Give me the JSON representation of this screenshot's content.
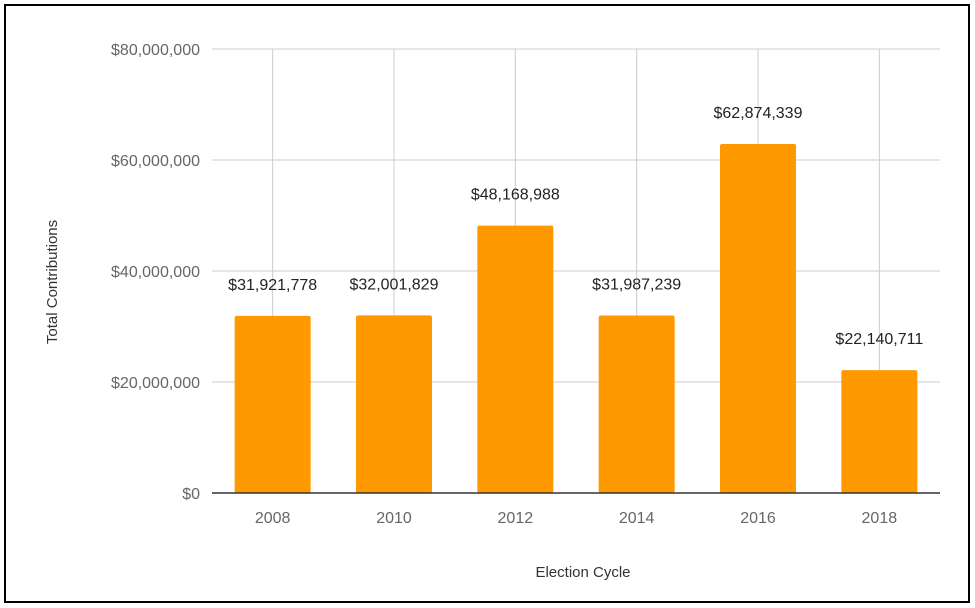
{
  "chart_data": {
    "type": "bar",
    "title": "",
    "xlabel": "Election Cycle",
    "ylabel": "Total Contributions",
    "categories": [
      "2008",
      "2010",
      "2012",
      "2014",
      "2016",
      "2018"
    ],
    "values": [
      31921778,
      32001829,
      48168988,
      31987239,
      62874339,
      22140711
    ],
    "value_labels": [
      "$31,921,778",
      "$32,001,829",
      "$48,168,988",
      "$31,987,239",
      "$62,874,339",
      "$22,140,711"
    ],
    "y_ticks": [
      0,
      20000000,
      40000000,
      60000000,
      80000000
    ],
    "y_tick_labels": [
      "$0",
      "$20,000,000",
      "$40,000,000",
      "$60,000,000",
      "$80,000,000"
    ],
    "ylim": [
      0,
      80000000
    ],
    "grid": true,
    "legend": "none",
    "bar_color": "#ff9900",
    "grid_color": "#cccccc",
    "axis_color": "#333333"
  }
}
